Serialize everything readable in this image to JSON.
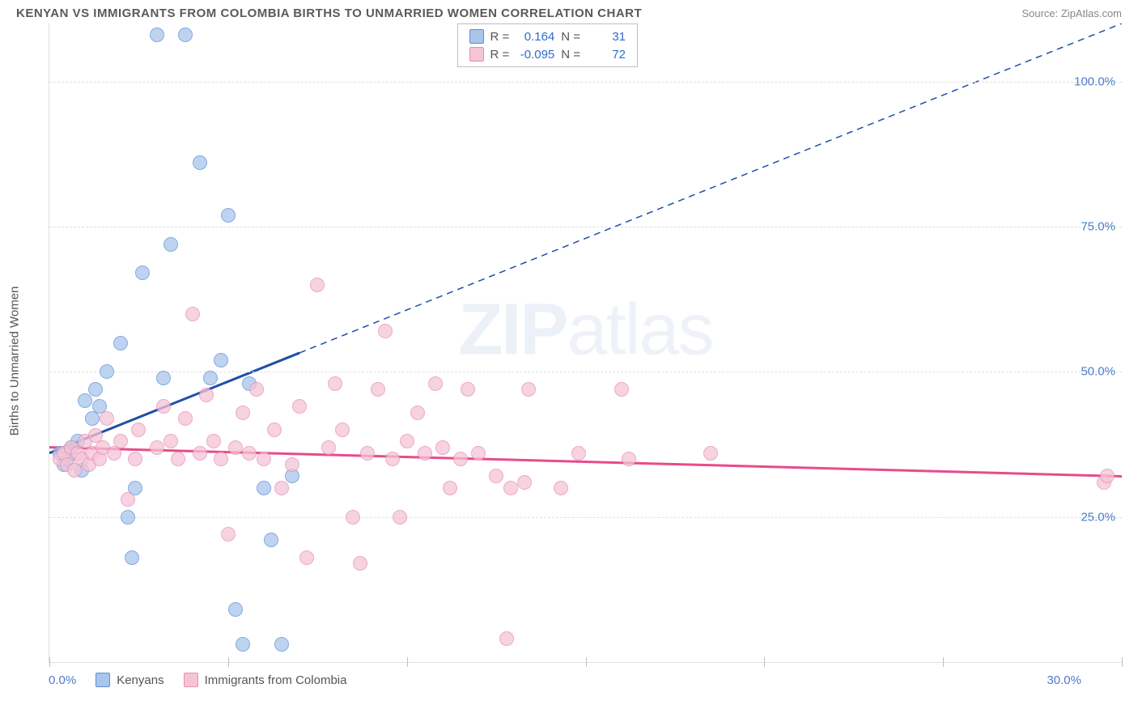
{
  "title": "KENYAN VS IMMIGRANTS FROM COLOMBIA BIRTHS TO UNMARRIED WOMEN CORRELATION CHART",
  "source": "Source: ZipAtlas.com",
  "watermark": "ZIPatlas",
  "y_axis_label": "Births to Unmarried Women",
  "chart": {
    "type": "scatter",
    "background_color": "#ffffff",
    "grid_color": "#e0e0e0",
    "grid_style": "dashed",
    "xlim": [
      0,
      30
    ],
    "ylim": [
      0,
      110
    ],
    "x_ticks": [
      0,
      5,
      10,
      15,
      20,
      25,
      30
    ],
    "x_tick_labels": {
      "0": "0.0%",
      "30": "30.0%"
    },
    "y_ticks": [
      25,
      50,
      75,
      100
    ],
    "y_tick_labels": {
      "25": "25.0%",
      "50": "50.0%",
      "75": "75.0%",
      "100": "100.0%"
    },
    "marker_radius": 9,
    "marker_stroke_width": 1.5,
    "marker_fill_opacity": 0.25,
    "axis_label_color": "#4a7bc8",
    "axis_label_fontsize": 15,
    "title_fontsize": 15,
    "title_color": "#5a5a5a"
  },
  "series": [
    {
      "name": "Kenyans",
      "legend_label": "Kenyans",
      "color": "#5b8fd6",
      "fill": "#a9c5ea",
      "trend_color": "#1f4fa8",
      "trend_width": 3,
      "trend_dash_solid_until_x": 7,
      "trend": {
        "x1": 0,
        "y1": 36,
        "x2": 30,
        "y2": 110
      },
      "R_label": "R =",
      "R": "0.164",
      "N_label": "N =",
      "N": "31",
      "points": [
        [
          0.3,
          36
        ],
        [
          0.4,
          34
        ],
        [
          0.5,
          35
        ],
        [
          0.6,
          37
        ],
        [
          0.8,
          38
        ],
        [
          0.9,
          33
        ],
        [
          1.0,
          45
        ],
        [
          1.2,
          42
        ],
        [
          1.3,
          47
        ],
        [
          1.4,
          44
        ],
        [
          1.6,
          50
        ],
        [
          2.0,
          55
        ],
        [
          2.2,
          25
        ],
        [
          2.3,
          18
        ],
        [
          2.4,
          30
        ],
        [
          2.6,
          67
        ],
        [
          3.0,
          108
        ],
        [
          3.2,
          49
        ],
        [
          3.4,
          72
        ],
        [
          3.8,
          108
        ],
        [
          4.2,
          86
        ],
        [
          4.5,
          49
        ],
        [
          4.8,
          52
        ],
        [
          5.0,
          77
        ],
        [
          5.2,
          9
        ],
        [
          5.4,
          3
        ],
        [
          5.6,
          48
        ],
        [
          6.0,
          30
        ],
        [
          6.2,
          21
        ],
        [
          6.5,
          3
        ],
        [
          6.8,
          32
        ]
      ]
    },
    {
      "name": "Immigrants from Colombia",
      "legend_label": "Immigrants from Colombia",
      "color": "#e78fb0",
      "fill": "#f5c4d6",
      "trend_color": "#e84b8a",
      "trend_width": 3,
      "trend": {
        "x1": 0,
        "y1": 37,
        "x2": 30,
        "y2": 32
      },
      "R_label": "R =",
      "R": "-0.095",
      "N_label": "N =",
      "N": "72",
      "points": [
        [
          0.3,
          35
        ],
        [
          0.4,
          36
        ],
        [
          0.5,
          34
        ],
        [
          0.6,
          37
        ],
        [
          0.7,
          33
        ],
        [
          0.8,
          36
        ],
        [
          0.9,
          35
        ],
        [
          1.0,
          38
        ],
        [
          1.1,
          34
        ],
        [
          1.2,
          36
        ],
        [
          1.3,
          39
        ],
        [
          1.4,
          35
        ],
        [
          1.5,
          37
        ],
        [
          1.6,
          42
        ],
        [
          1.8,
          36
        ],
        [
          2.0,
          38
        ],
        [
          2.2,
          28
        ],
        [
          2.4,
          35
        ],
        [
          2.5,
          40
        ],
        [
          3.0,
          37
        ],
        [
          3.2,
          44
        ],
        [
          3.4,
          38
        ],
        [
          3.6,
          35
        ],
        [
          3.8,
          42
        ],
        [
          4.0,
          60
        ],
        [
          4.2,
          36
        ],
        [
          4.4,
          46
        ],
        [
          4.6,
          38
        ],
        [
          4.8,
          35
        ],
        [
          5.0,
          22
        ],
        [
          5.2,
          37
        ],
        [
          5.4,
          43
        ],
        [
          5.6,
          36
        ],
        [
          5.8,
          47
        ],
        [
          6.0,
          35
        ],
        [
          6.3,
          40
        ],
        [
          6.5,
          30
        ],
        [
          6.8,
          34
        ],
        [
          7.0,
          44
        ],
        [
          7.2,
          18
        ],
        [
          7.5,
          65
        ],
        [
          7.8,
          37
        ],
        [
          8.0,
          48
        ],
        [
          8.2,
          40
        ],
        [
          8.5,
          25
        ],
        [
          8.7,
          17
        ],
        [
          8.9,
          36
        ],
        [
          9.2,
          47
        ],
        [
          9.4,
          57
        ],
        [
          9.6,
          35
        ],
        [
          9.8,
          25
        ],
        [
          10.0,
          38
        ],
        [
          10.3,
          43
        ],
        [
          10.5,
          36
        ],
        [
          10.8,
          48
        ],
        [
          11.0,
          37
        ],
        [
          11.2,
          30
        ],
        [
          11.5,
          35
        ],
        [
          11.7,
          47
        ],
        [
          12.0,
          36
        ],
        [
          12.5,
          32
        ],
        [
          12.8,
          4
        ],
        [
          12.9,
          30
        ],
        [
          13.3,
          31
        ],
        [
          13.4,
          47
        ],
        [
          14.3,
          30
        ],
        [
          14.8,
          36
        ],
        [
          16.0,
          47
        ],
        [
          16.2,
          35
        ],
        [
          18.5,
          36
        ],
        [
          29.5,
          31
        ],
        [
          29.6,
          32
        ]
      ]
    }
  ],
  "legend": {
    "series1_label": "Kenyans",
    "series2_label": "Immigrants from Colombia"
  }
}
